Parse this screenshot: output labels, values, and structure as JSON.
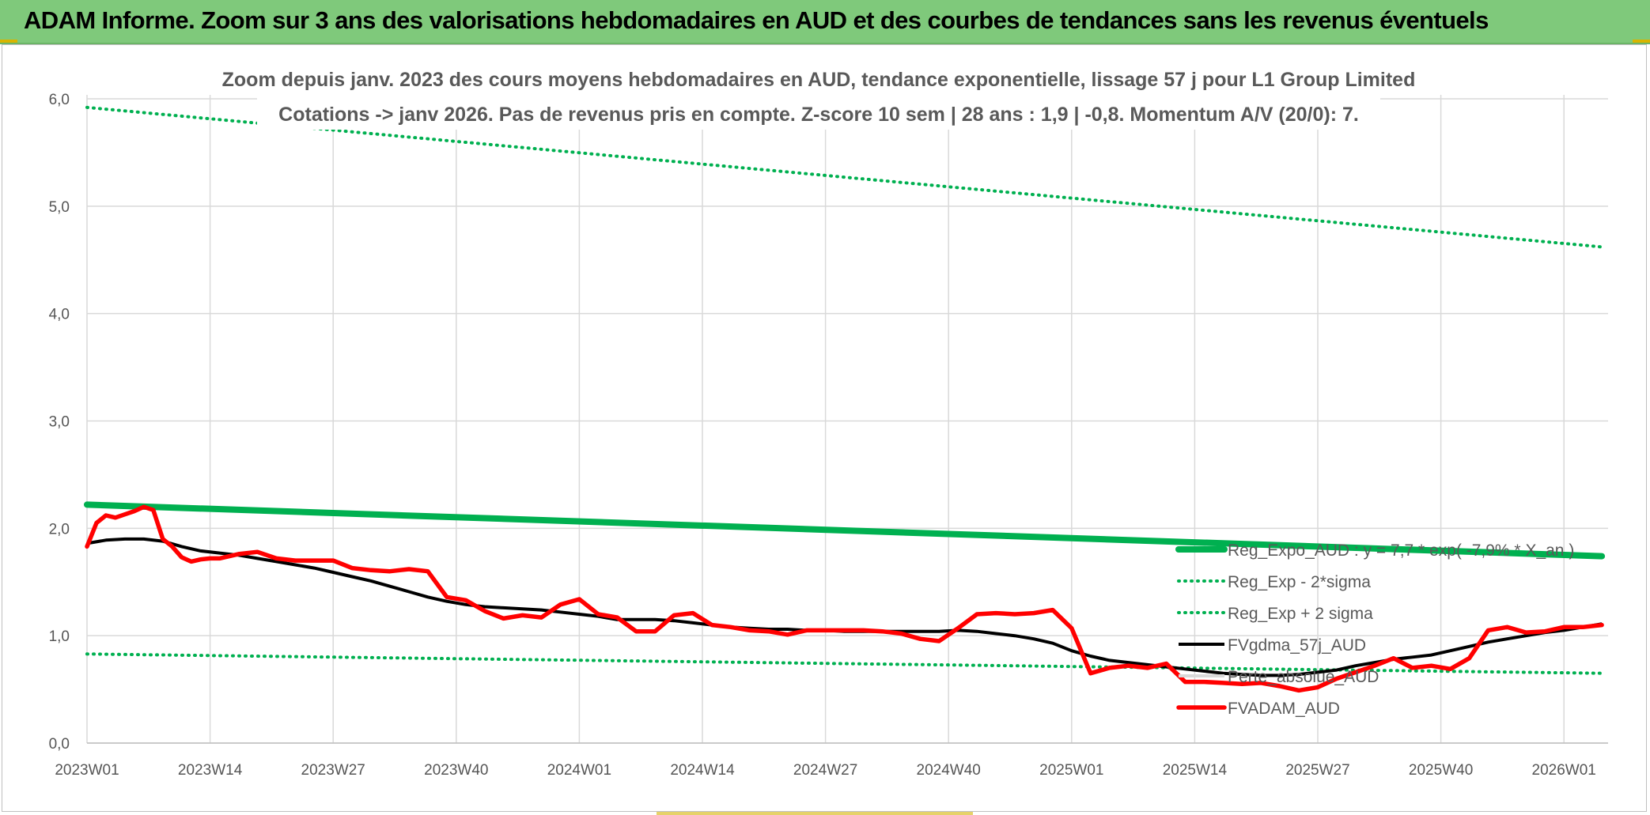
{
  "header": {
    "title": "ADAM Informe. Zoom sur 3 ans des valorisations hebdomadaires en AUD et des courbes de tendances sans les revenus éventuels"
  },
  "colors": {
    "header_bg": "#7fc97b",
    "trend_green": "#00b050",
    "fvgdma_black": "#000000",
    "fvadam_red": "#ff0000",
    "grid": "#d9d9d9"
  },
  "chart_data": {
    "type": "line",
    "title": "Zoom depuis janv. 2023 des cours moyens hebdomadaires en AUD, tendance exponentielle, lissage 57 j pour L1 Group Limited",
    "subtitle": "Cotations -> janv 2026. Pas de revenus pris en compte. Z-score 10 sem | 28 ans : 1,9 | -0,8. Momentum A/V (20/0): 7.",
    "xlabel": "",
    "ylabel": "",
    "ylim": [
      0,
      6
    ],
    "yticks": [
      "0,0",
      "1,0",
      "2,0",
      "3,0",
      "4,0",
      "5,0",
      "6,0"
    ],
    "x_ticks": [
      "2023W01",
      "2023W14",
      "2023W27",
      "2023W40",
      "2024W01",
      "2024W14",
      "2024W27",
      "2024W40",
      "2025W01",
      "2025W14",
      "2025W27",
      "2025W40",
      "2026W01"
    ],
    "x_range_weeks": [
      0,
      160
    ],
    "grid": true,
    "legend_position": "bottom-right",
    "series": [
      {
        "name": "Reg_Expo_AUD : y = 7,7 * exp( -7,9% * X_an )",
        "style": "solid-thick",
        "color": "#00b050",
        "x": [
          0,
          160
        ],
        "y": [
          2.22,
          1.74
        ]
      },
      {
        "name": "Reg_Exp - 2*sigma",
        "style": "dotted",
        "color": "#00b050",
        "x": [
          0,
          160
        ],
        "y": [
          0.83,
          0.65
        ]
      },
      {
        "name": "Reg_Exp + 2 sigma",
        "style": "dotted",
        "color": "#00b050",
        "x": [
          0,
          160
        ],
        "y": [
          5.92,
          4.62
        ]
      },
      {
        "name": "FVgdma_57j_AUD",
        "style": "solid",
        "color": "#000000",
        "x": [
          0,
          2,
          4,
          6,
          8,
          10,
          12,
          14,
          16,
          18,
          20,
          22,
          24,
          26,
          28,
          30,
          32,
          34,
          36,
          38,
          40,
          42,
          44,
          46,
          48,
          50,
          52,
          54,
          56,
          58,
          60,
          62,
          64,
          66,
          68,
          70,
          72,
          74,
          76,
          78,
          80,
          82,
          84,
          86,
          88,
          90,
          92,
          94,
          96,
          98,
          100,
          102,
          104,
          106,
          108,
          110,
          112,
          114,
          116,
          118,
          120,
          122,
          124,
          126,
          128,
          130,
          132,
          134,
          136,
          138,
          140,
          142,
          144,
          146,
          148,
          150,
          152,
          154,
          156,
          158,
          160
        ],
        "y": [
          1.86,
          1.89,
          1.9,
          1.9,
          1.88,
          1.83,
          1.79,
          1.77,
          1.75,
          1.72,
          1.69,
          1.66,
          1.63,
          1.59,
          1.55,
          1.51,
          1.46,
          1.41,
          1.36,
          1.32,
          1.29,
          1.27,
          1.26,
          1.25,
          1.24,
          1.22,
          1.2,
          1.18,
          1.15,
          1.15,
          1.15,
          1.14,
          1.12,
          1.1,
          1.08,
          1.07,
          1.06,
          1.06,
          1.05,
          1.05,
          1.04,
          1.04,
          1.04,
          1.04,
          1.04,
          1.04,
          1.05,
          1.04,
          1.02,
          1.0,
          0.97,
          0.93,
          0.86,
          0.81,
          0.77,
          0.75,
          0.73,
          0.71,
          0.69,
          0.67,
          0.65,
          0.64,
          0.63,
          0.63,
          0.64,
          0.66,
          0.68,
          0.72,
          0.75,
          0.78,
          0.8,
          0.82,
          0.86,
          0.9,
          0.94,
          0.97,
          1.0,
          1.03,
          1.05,
          1.08,
          1.11
        ]
      },
      {
        "name": "Perte_absolue_AUD",
        "style": "solid",
        "color": "#d9d9d9",
        "x": [],
        "y": []
      },
      {
        "name": "FVADAM_AUD",
        "style": "solid-thick",
        "color": "#ff0000",
        "x": [
          0,
          1,
          2,
          3,
          4,
          5,
          6,
          7,
          8,
          9,
          10,
          11,
          12,
          13,
          14,
          16,
          18,
          20,
          22,
          24,
          26,
          28,
          30,
          32,
          34,
          36,
          38,
          40,
          42,
          44,
          46,
          48,
          50,
          52,
          54,
          56,
          58,
          60,
          62,
          64,
          66,
          68,
          70,
          72,
          74,
          76,
          78,
          80,
          82,
          84,
          86,
          88,
          90,
          92,
          94,
          96,
          98,
          100,
          102,
          104,
          106,
          108,
          110,
          112,
          114,
          116,
          118,
          120,
          122,
          124,
          126,
          128,
          130,
          132,
          134,
          136,
          138,
          140,
          142,
          144,
          146,
          148,
          150,
          152,
          154,
          156,
          158,
          160
        ],
        "y": [
          1.83,
          2.05,
          2.12,
          2.1,
          2.13,
          2.16,
          2.2,
          2.17,
          1.9,
          1.83,
          1.73,
          1.69,
          1.71,
          1.72,
          1.72,
          1.76,
          1.78,
          1.72,
          1.7,
          1.7,
          1.7,
          1.63,
          1.61,
          1.6,
          1.62,
          1.6,
          1.36,
          1.33,
          1.23,
          1.16,
          1.19,
          1.17,
          1.29,
          1.34,
          1.2,
          1.17,
          1.04,
          1.04,
          1.19,
          1.21,
          1.1,
          1.08,
          1.05,
          1.04,
          1.01,
          1.05,
          1.05,
          1.05,
          1.05,
          1.04,
          1.02,
          0.97,
          0.95,
          1.07,
          1.2,
          1.21,
          1.2,
          1.21,
          1.24,
          1.07,
          0.65,
          0.7,
          0.72,
          0.7,
          0.74,
          0.57,
          0.57,
          0.56,
          0.55,
          0.56,
          0.53,
          0.49,
          0.52,
          0.6,
          0.66,
          0.72,
          0.79,
          0.7,
          0.72,
          0.69,
          0.79,
          1.05,
          1.08,
          1.03,
          1.04,
          1.08,
          1.08,
          1.1
        ]
      }
    ]
  }
}
